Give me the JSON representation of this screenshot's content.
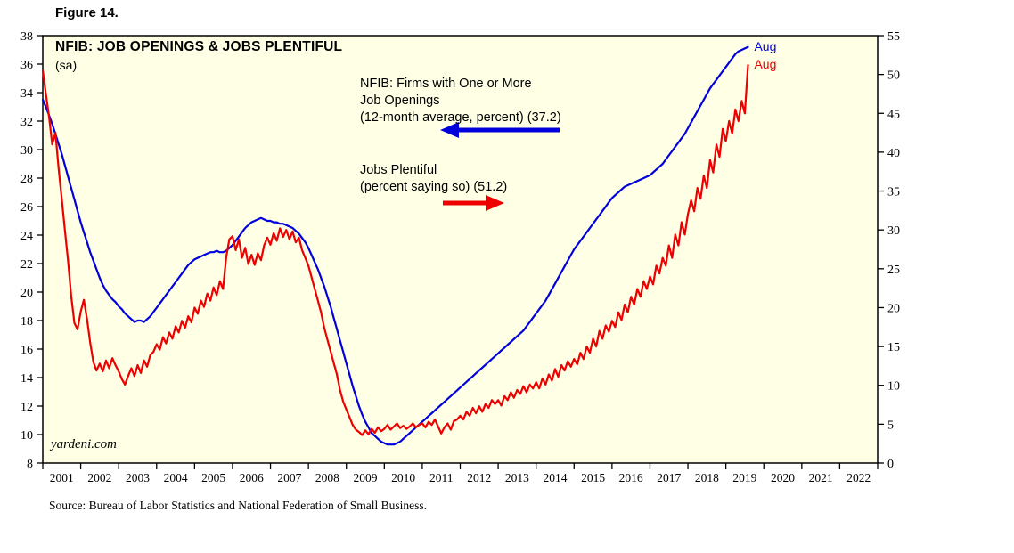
{
  "figure_label": "Figure 14.",
  "title": "NFIB: JOB OPENINGS & JOBS PLENTIFUL",
  "subtitle": "(sa)",
  "watermark": "yardeni.com",
  "source": "Source: Bureau of Labor Statistics and National Federation of Small Business.",
  "annotations": {
    "blue": {
      "lines": [
        "NFIB: Firms with One or More",
        "Job Openings",
        "(12-month average, percent) (37.2)"
      ]
    },
    "red": {
      "lines": [
        "Jobs Plentiful",
        "(percent saying so) (51.2)"
      ]
    }
  },
  "colors": {
    "blue": "#0000DD",
    "red": "#EE0000",
    "plot_bg": "#FFFFE6",
    "axis": "#000000"
  },
  "chart_data": {
    "type": "line",
    "title": "NFIB: JOB OPENINGS & JOBS PLENTIFUL",
    "grid": false,
    "x_range": [
      2001,
      2023
    ],
    "x_year_labels": [
      "2001",
      "2002",
      "2003",
      "2004",
      "2005",
      "2006",
      "2007",
      "2008",
      "2009",
      "2010",
      "2011",
      "2012",
      "2013",
      "2014",
      "2015",
      "2016",
      "2017",
      "2018",
      "2019",
      "2020",
      "2021",
      "2022"
    ],
    "left_axis": {
      "min": 8,
      "max": 38,
      "step": 2
    },
    "right_axis": {
      "min": 0,
      "max": 55,
      "step": 5
    },
    "series": [
      {
        "name": "NFIB: Firms with One or More Job Openings (12-month average, percent)",
        "axis": "left",
        "color_key": "blue",
        "latest_label": "Aug",
        "latest_value": 37.2,
        "x_start": 2001.0,
        "x_interval": 0.0833333,
        "values": [
          33.5,
          33.0,
          32.4,
          31.8,
          31.1,
          30.4,
          29.7,
          28.9,
          28.1,
          27.3,
          26.5,
          25.7,
          24.9,
          24.2,
          23.5,
          22.8,
          22.2,
          21.6,
          21.0,
          20.5,
          20.1,
          19.8,
          19.5,
          19.3,
          19.0,
          18.8,
          18.5,
          18.3,
          18.1,
          17.9,
          18.0,
          18.0,
          17.9,
          18.1,
          18.3,
          18.6,
          18.9,
          19.2,
          19.5,
          19.8,
          20.1,
          20.4,
          20.7,
          21.0,
          21.3,
          21.6,
          21.9,
          22.1,
          22.3,
          22.4,
          22.5,
          22.6,
          22.7,
          22.8,
          22.8,
          22.9,
          22.8,
          22.8,
          22.9,
          23.1,
          23.3,
          23.6,
          23.9,
          24.2,
          24.5,
          24.7,
          24.9,
          25.0,
          25.1,
          25.2,
          25.1,
          25.0,
          25.0,
          24.9,
          24.9,
          24.8,
          24.8,
          24.7,
          24.6,
          24.5,
          24.3,
          24.1,
          23.8,
          23.5,
          23.1,
          22.6,
          22.1,
          21.6,
          21.0,
          20.4,
          19.7,
          19.0,
          18.2,
          17.4,
          16.6,
          15.8,
          15.0,
          14.2,
          13.4,
          12.7,
          12.0,
          11.4,
          10.9,
          10.5,
          10.1,
          9.9,
          9.7,
          9.5,
          9.4,
          9.3,
          9.3,
          9.3,
          9.4,
          9.5,
          9.7,
          9.9,
          10.1,
          10.3,
          10.5,
          10.7,
          10.9,
          11.1,
          11.3,
          11.5,
          11.7,
          11.9,
          12.1,
          12.3,
          12.5,
          12.7,
          12.9,
          13.1,
          13.3,
          13.5,
          13.7,
          13.9,
          14.1,
          14.3,
          14.5,
          14.7,
          14.9,
          15.1,
          15.3,
          15.5,
          15.7,
          15.9,
          16.1,
          16.3,
          16.5,
          16.7,
          16.9,
          17.1,
          17.3,
          17.6,
          17.9,
          18.2,
          18.5,
          18.8,
          19.1,
          19.4,
          19.8,
          20.2,
          20.6,
          21.0,
          21.4,
          21.8,
          22.2,
          22.6,
          23.0,
          23.3,
          23.6,
          23.9,
          24.2,
          24.5,
          24.8,
          25.1,
          25.4,
          25.7,
          26.0,
          26.3,
          26.6,
          26.8,
          27.0,
          27.2,
          27.4,
          27.5,
          27.6,
          27.7,
          27.8,
          27.9,
          28.0,
          28.1,
          28.2,
          28.4,
          28.6,
          28.8,
          29.0,
          29.3,
          29.6,
          29.9,
          30.2,
          30.5,
          30.8,
          31.1,
          31.5,
          31.9,
          32.3,
          32.7,
          33.1,
          33.5,
          33.9,
          34.3,
          34.6,
          34.9,
          35.2,
          35.5,
          35.8,
          36.1,
          36.4,
          36.7,
          36.9,
          37.0,
          37.1,
          37.2
        ]
      },
      {
        "name": "Jobs Plentiful (percent saying so)",
        "axis": "right",
        "color_key": "red",
        "latest_label": "Aug",
        "latest_value": 51.2,
        "x_start": 2001.0,
        "x_interval": 0.0833333,
        "values": [
          50.5,
          47.5,
          44.5,
          41.0,
          42.5,
          38.0,
          34.0,
          30.0,
          26.0,
          21.5,
          18.0,
          17.2,
          19.5,
          21.0,
          18.5,
          15.5,
          13.0,
          11.9,
          12.8,
          11.8,
          13.2,
          12.2,
          13.5,
          12.6,
          11.8,
          10.8,
          10.1,
          11.2,
          12.2,
          11.2,
          12.6,
          11.6,
          13.2,
          12.4,
          13.9,
          14.3,
          15.3,
          14.6,
          16.2,
          15.4,
          16.8,
          16.0,
          17.6,
          16.8,
          18.3,
          17.4,
          18.9,
          18.1,
          20.0,
          19.2,
          20.9,
          20.1,
          21.8,
          20.9,
          22.6,
          21.6,
          23.4,
          22.4,
          26.5,
          28.8,
          29.2,
          27.4,
          28.8,
          26.4,
          27.7,
          25.6,
          26.8,
          25.5,
          27.0,
          26.1,
          28.0,
          29.0,
          28.1,
          29.6,
          28.6,
          30.2,
          29.1,
          30.0,
          28.8,
          29.8,
          28.4,
          29.0,
          27.4,
          26.4,
          25.4,
          23.9,
          22.4,
          20.9,
          19.4,
          17.4,
          15.9,
          14.4,
          12.9,
          11.4,
          9.4,
          7.9,
          6.9,
          5.9,
          4.9,
          4.3,
          4.0,
          3.6,
          4.2,
          3.7,
          4.4,
          3.9,
          4.6,
          4.1,
          4.4,
          4.9,
          4.3,
          4.7,
          5.1,
          4.5,
          4.8,
          4.4,
          4.7,
          5.1,
          4.6,
          4.9,
          5.1,
          4.6,
          5.3,
          4.9,
          5.6,
          4.7,
          3.8,
          4.6,
          5.1,
          4.3,
          5.4,
          5.6,
          6.1,
          5.6,
          6.6,
          6.1,
          7.1,
          6.4,
          7.3,
          6.6,
          7.6,
          7.1,
          8.1,
          7.6,
          8.1,
          7.4,
          8.6,
          8.1,
          9.1,
          8.4,
          9.4,
          8.9,
          9.9,
          9.1,
          10.1,
          9.6,
          10.4,
          9.6,
          10.9,
          10.1,
          11.4,
          10.6,
          12.1,
          11.1,
          12.6,
          11.9,
          13.1,
          12.4,
          13.4,
          12.7,
          14.2,
          13.4,
          15.0,
          14.2,
          16.0,
          15.0,
          17.0,
          16.0,
          17.7,
          16.9,
          18.3,
          17.5,
          19.4,
          18.4,
          20.4,
          19.4,
          21.4,
          20.4,
          22.4,
          21.4,
          23.4,
          22.4,
          24.0,
          23.0,
          25.4,
          24.4,
          26.4,
          25.4,
          28.0,
          26.4,
          29.4,
          28.0,
          31.0,
          29.4,
          32.0,
          33.8,
          32.4,
          35.4,
          34.0,
          37.0,
          35.4,
          39.0,
          37.4,
          41.0,
          39.4,
          43.0,
          41.4,
          44.0,
          42.4,
          45.5,
          44.0,
          46.6,
          45.0,
          51.2
        ]
      }
    ]
  }
}
